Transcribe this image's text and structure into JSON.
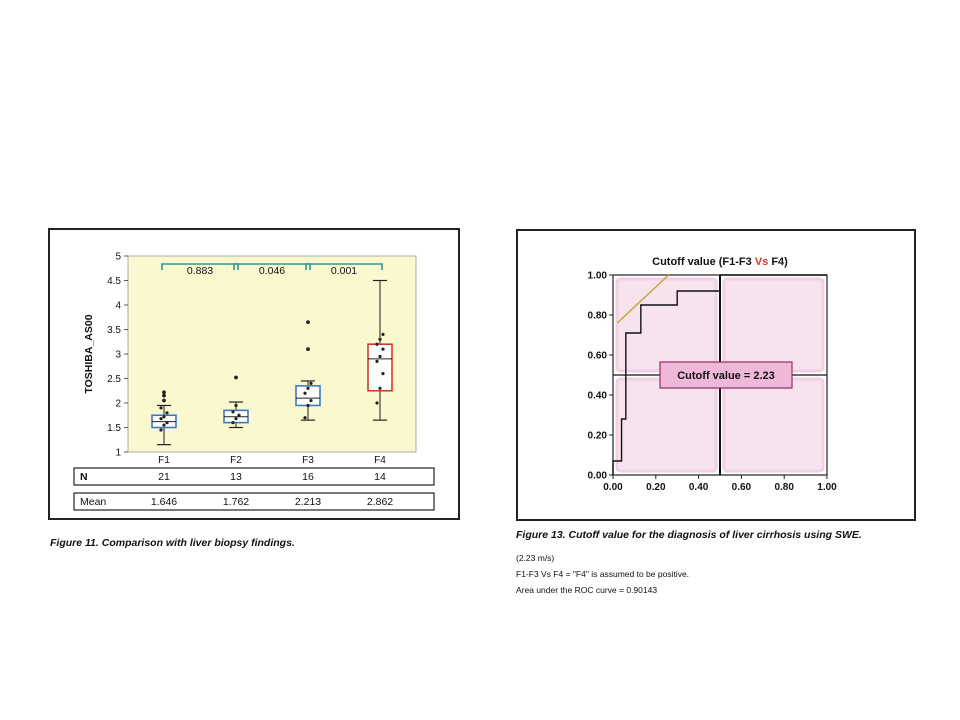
{
  "figure11": {
    "caption": "Figure 11.  Comparison with liver biopsy findings.",
    "chart_data": {
      "type": "boxplot",
      "ylabel": "TOSHIBA_AS00",
      "ylim": [
        1,
        5
      ],
      "yticks": [
        "1",
        "1.5",
        "2",
        "2.5",
        "3",
        "3.5",
        "4",
        "4.5",
        "5"
      ],
      "categories": [
        "F1",
        "F2",
        "F3",
        "F4"
      ],
      "boxes": [
        {
          "name": "F1",
          "whisker_low": 1.15,
          "q1": 1.5,
          "median": 1.62,
          "q3": 1.75,
          "whisker_high": 1.95,
          "mean": 1.646,
          "color": "#3b7bbf",
          "outliers": [
            2.05,
            2.15,
            2.22
          ],
          "points": [
            1.45,
            1.55,
            1.6,
            1.68,
            1.72,
            1.8,
            1.9
          ]
        },
        {
          "name": "F2",
          "whisker_low": 1.5,
          "q1": 1.6,
          "median": 1.72,
          "q3": 1.85,
          "whisker_high": 2.02,
          "mean": 1.762,
          "color": "#3b7bbf",
          "outliers": [
            2.52
          ],
          "points": [
            1.6,
            1.68,
            1.75,
            1.82,
            1.95
          ]
        },
        {
          "name": "F3",
          "whisker_low": 1.65,
          "q1": 1.95,
          "median": 2.1,
          "q3": 2.35,
          "whisker_high": 2.45,
          "mean": 2.213,
          "color": "#3b7bbf",
          "outliers": [
            3.1,
            3.65
          ],
          "points": [
            1.7,
            1.95,
            2.05,
            2.2,
            2.3,
            2.4
          ]
        },
        {
          "name": "F4",
          "whisker_low": 1.65,
          "q1": 2.25,
          "median": 2.9,
          "q3": 3.2,
          "whisker_high": 4.5,
          "mean": 2.862,
          "color": "#d23a2c",
          "outliers": [],
          "points": [
            2.0,
            2.3,
            2.6,
            2.85,
            2.95,
            3.1,
            3.2,
            3.3,
            3.4
          ]
        }
      ],
      "p_values": [
        "0.883",
        "0.046",
        "0.001"
      ],
      "table": {
        "rows": [
          {
            "label": "N",
            "values": [
              "21",
              "13",
              "16",
              "14"
            ]
          },
          {
            "label": "Mean",
            "values": [
              "1.646",
              "1.762",
              "2.213",
              "2.862"
            ]
          }
        ]
      }
    }
  },
  "figure13": {
    "caption": "Figure 13. Cutoff value for the diagnosis of liver cirrhosis using SWE.",
    "notes": [
      "(2.23 m/s)",
      "F1-F3 Vs F4 = \"F4\" is assumed to be positive.",
      "Area under the ROC curve = 0.90143"
    ],
    "chart_data": {
      "type": "line",
      "title_parts": [
        "Cutoff value (F1-F3 ",
        "Vs",
        " F4)"
      ],
      "title_color_vs": "#d23a2c",
      "xlim": [
        0,
        1
      ],
      "ylim": [
        0,
        1
      ],
      "xticks": [
        "0.00",
        "0.20",
        "0.40",
        "0.60",
        "0.80",
        "1.00"
      ],
      "yticks": [
        "0.00",
        "0.20",
        "0.40",
        "0.60",
        "0.80",
        "1.00"
      ],
      "roc_curve": {
        "x": [
          0.0,
          0.0,
          0.04,
          0.04,
          0.06,
          0.06,
          0.13,
          0.13,
          0.3,
          0.3,
          0.5,
          0.5,
          1.0
        ],
        "y": [
          0.0,
          0.07,
          0.07,
          0.28,
          0.28,
          0.71,
          0.71,
          0.85,
          0.85,
          0.92,
          0.92,
          1.0,
          1.0
        ]
      },
      "tangent_line": {
        "x": [
          0.02,
          0.26
        ],
        "y": [
          0.76,
          1.0
        ],
        "color": "#c9a227"
      },
      "cutoff_point": {
        "x": 0.5,
        "y": 0.5
      },
      "annotation": "Cutoff value = 2.23",
      "annotation_color": "#f0b8d8"
    }
  }
}
